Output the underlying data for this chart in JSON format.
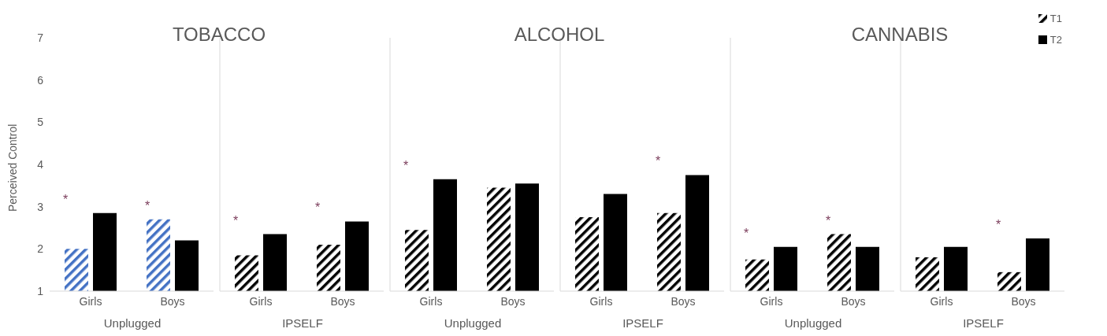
{
  "chart_data": [
    {
      "type": "bar",
      "title": "TOBACCO",
      "ylabel": "Perceived Control",
      "xlabel": "Unplugged",
      "categories": [
        "Girls",
        "Boys"
      ],
      "ylim": [
        1,
        7
      ],
      "yticks": [
        1,
        2,
        3,
        4,
        5,
        6,
        7
      ],
      "grid": false,
      "legend": false,
      "series": [
        {
          "color": "#4472c4",
          "values": [
            2.0,
            2.7
          ]
        },
        {
          "color": "#000000",
          "values": [
            2.85,
            2.2
          ]
        }
      ],
      "annotations": [
        {
          "text": "*",
          "x": "Girls",
          "y": 2.85
        },
        {
          "text": "*",
          "x": "Boys",
          "y": 2.7
        }
      ]
    },
    {
      "type": "bar",
      "xlabel": "IPSELF",
      "categories": [
        "Girls",
        "Boys"
      ],
      "ylim": [
        1,
        7
      ],
      "yticks": [
        1,
        2,
        3,
        4,
        5,
        6,
        7
      ],
      "tick_labels": "x",
      "grid": false,
      "legend": false,
      "series": [
        {
          "color": "#000000",
          "values": [
            1.85,
            2.1
          ]
        },
        {
          "color": "#000000",
          "values": [
            2.35,
            2.65
          ]
        }
      ],
      "annotations": [
        {
          "text": "*",
          "x": "Girls",
          "y": 2.35
        },
        {
          "text": "*",
          "x": "Boys",
          "y": 2.65
        }
      ]
    },
    {
      "type": "bar",
      "title": "ALCOHOL",
      "xlabel": "Unplugged",
      "categories": [
        "Girls",
        "Boys"
      ],
      "ylim": [
        1,
        7
      ],
      "yticks": [
        1,
        2,
        3,
        4,
        5,
        6,
        7
      ],
      "tick_labels": "x",
      "grid": false,
      "legend": false,
      "series": [
        {
          "color": "#000000",
          "values": [
            2.45,
            3.45
          ]
        },
        {
          "color": "#000000",
          "values": [
            3.65,
            3.55
          ]
        }
      ],
      "annotations": [
        {
          "text": "*",
          "x": "Girls",
          "y": 3.65
        }
      ]
    },
    {
      "type": "bar",
      "xlabel": "IPSELF",
      "categories": [
        "Girls",
        "Boys"
      ],
      "ylim": [
        1,
        7
      ],
      "yticks": [
        1,
        2,
        3,
        4,
        5,
        6,
        7
      ],
      "tick_labels": "x",
      "grid": false,
      "legend": false,
      "series": [
        {
          "color": "#000000",
          "values": [
            2.75,
            2.85
          ]
        },
        {
          "color": "#000000",
          "values": [
            3.3,
            3.75
          ]
        }
      ],
      "annotations": [
        {
          "text": "*",
          "x": "Boys",
          "y": 3.75
        }
      ]
    },
    {
      "type": "bar",
      "title": "CANNABIS",
      "xlabel": "Unplugged",
      "categories": [
        "Girls",
        "Boys"
      ],
      "ylim": [
        1,
        7
      ],
      "yticks": [
        1,
        2,
        3,
        4,
        5,
        6,
        7
      ],
      "tick_labels": "x",
      "grid": false,
      "legend": false,
      "series": [
        {
          "color": "#000000",
          "values": [
            1.75,
            2.35
          ]
        },
        {
          "color": "#000000",
          "values": [
            2.05,
            2.05
          ]
        }
      ],
      "annotations": [
        {
          "text": "*",
          "x": "Girls",
          "y": 2.05
        },
        {
          "text": "*",
          "x": "Boys",
          "y": 2.35
        }
      ]
    },
    {
      "type": "bar",
      "xlabel": "IPSELF",
      "categories": [
        "Girls",
        "Boys"
      ],
      "ylim": [
        1,
        7
      ],
      "yticks": [
        1,
        2,
        3,
        4,
        5,
        6,
        7
      ],
      "tick_labels": "x",
      "grid": false,
      "legend": "top right",
      "series": [
        {
          "name": "T1",
          "color": "#000000",
          "values": [
            1.8,
            1.45
          ]
        },
        {
          "name": "T2",
          "color": "#000000",
          "values": [
            2.05,
            2.25
          ]
        }
      ],
      "annotations": [
        {
          "text": "*",
          "x": "Boys",
          "y": 2.25
        }
      ]
    }
  ]
}
